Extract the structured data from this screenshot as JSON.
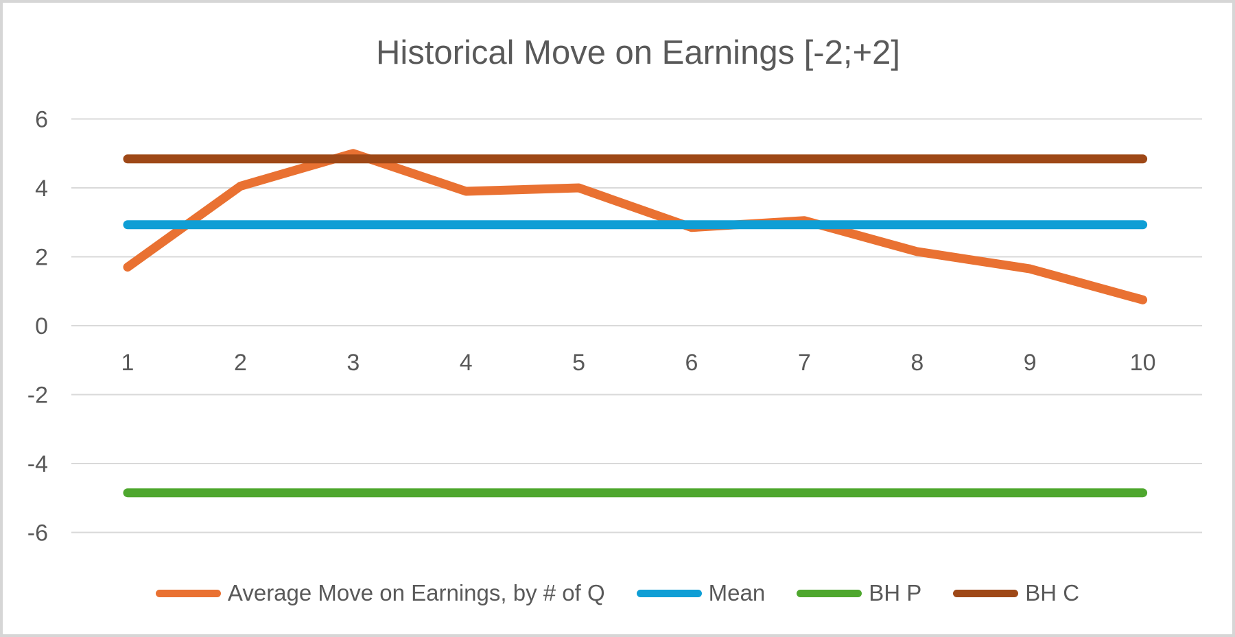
{
  "chart": {
    "title": "Historical Move on Earnings [-2;+2]"
  },
  "chart_data": {
    "type": "line",
    "title": "Historical Move on Earnings [-2;+2]",
    "categories": [
      "1",
      "2",
      "3",
      "4",
      "5",
      "6",
      "7",
      "8",
      "9",
      "10"
    ],
    "series": [
      {
        "name": "Average Move on Earnings, by # of Q",
        "color": "#E97132",
        "values": [
          1.7,
          4.05,
          5.0,
          3.9,
          4.0,
          2.85,
          3.05,
          2.15,
          1.65,
          0.75
        ]
      },
      {
        "name": "Mean",
        "color": "#0F9ED5",
        "constant": 2.93
      },
      {
        "name": "BH P",
        "color": "#4EA72E",
        "constant": -4.85
      },
      {
        "name": "BH C",
        "color": "#9E4817",
        "constant": 4.84
      }
    ],
    "xlabel": "",
    "ylabel": "",
    "ylim": [
      -6,
      6
    ],
    "yticks": [
      6,
      4,
      2,
      0,
      -2,
      -4,
      -6
    ],
    "xticks": [
      "1",
      "2",
      "3",
      "4",
      "5",
      "6",
      "7",
      "8",
      "9",
      "10"
    ],
    "grid": "horizontal-only",
    "grid_color": "#D9D9D9",
    "text_color": "#595959",
    "legend_position": "bottom"
  }
}
